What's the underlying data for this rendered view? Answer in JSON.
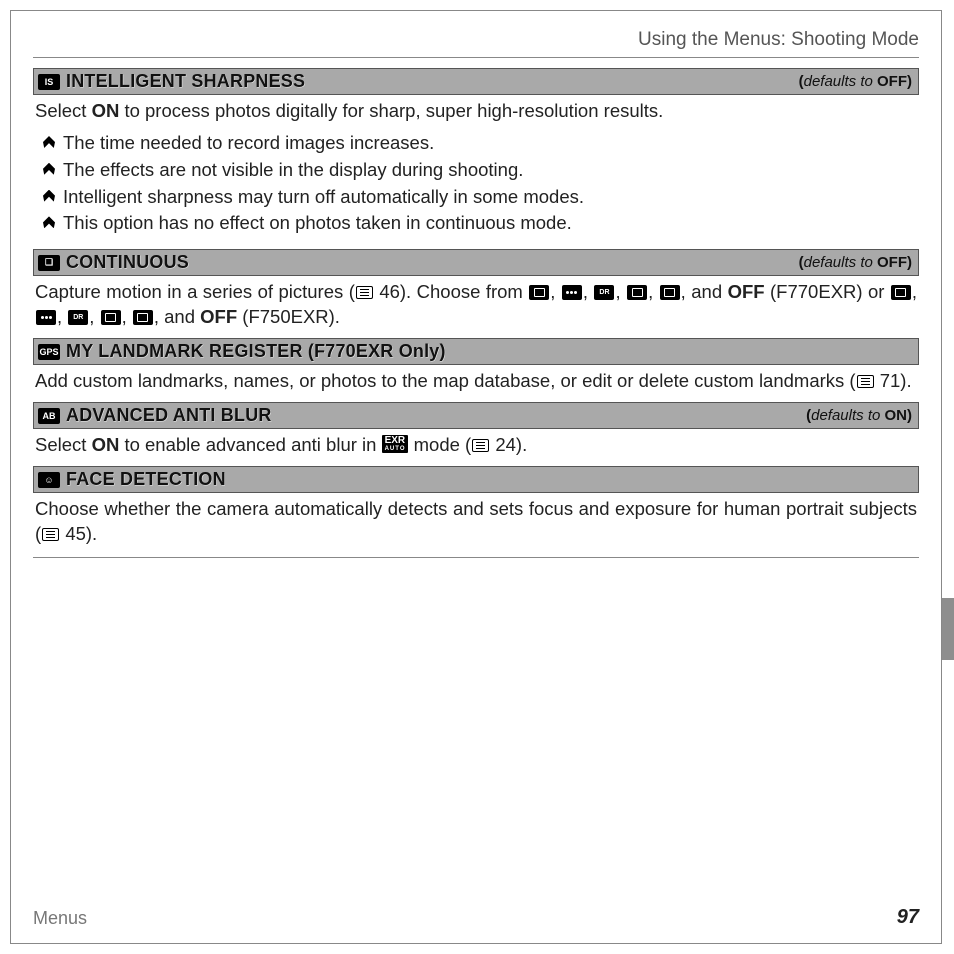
{
  "header": {
    "breadcrumb": "Using the Menus: Shooting Mode"
  },
  "sections": {
    "sharpness": {
      "icon_label": "IS",
      "title": "INTELLIGENT SHARPNESS",
      "default_prefix": "(",
      "default_text": "defaults to ",
      "default_value": "OFF",
      "default_suffix": ")",
      "body_pre": "Select ",
      "body_bold": "ON",
      "body_post": " to process photos digitally for sharp, super high-resolution results.",
      "notes": [
        "The time needed to record images increases.",
        "The effects are not visible in the display during shooting.",
        "Intelligent sharpness may turn off automatically in some modes.",
        "This option has no effect on photos taken in continuous mode."
      ]
    },
    "continuous": {
      "icon_label": "❏",
      "title": "CONTINUOUS",
      "default_prefix": "(",
      "default_text": "defaults to ",
      "default_value": "OFF",
      "default_suffix": ")",
      "body_a": "Capture motion in a series of pictures (",
      "body_pg1": "46",
      "body_b": "). Choose from ",
      "body_c": ", and ",
      "body_off1": "OFF",
      "body_d": " (F770EXR) or ",
      "body_e": ", and ",
      "body_off2": "OFF",
      "body_f": " (F750EXR)."
    },
    "landmark": {
      "icon_label": "GPS",
      "title": "MY LANDMARK REGISTER (F770EXR Only)",
      "body_a": "Add custom landmarks, names, or photos to the map database, or edit or delete custom landmarks (",
      "body_pg": "71",
      "body_b": ")."
    },
    "antiblur": {
      "icon_label": "AB",
      "title": "ADVANCED ANTI BLUR",
      "default_prefix": "(",
      "default_text": "defaults to ",
      "default_value": "ON",
      "default_suffix": ")",
      "body_a": "Select ",
      "body_bold": "ON",
      "body_b": " to enable advanced anti blur in ",
      "exr_top": "EXR",
      "exr_bot": "AUTO",
      "body_c": " mode (",
      "body_pg": "24",
      "body_d": ")."
    },
    "face": {
      "icon_label": "☺",
      "title": "FACE DETECTION",
      "body_a": "Choose whether the camera automatically detects and sets focus and exposure for human portrait subjects (",
      "body_pg": "45",
      "body_b": ")."
    }
  },
  "footer": {
    "label": "Menus",
    "page": "97"
  }
}
